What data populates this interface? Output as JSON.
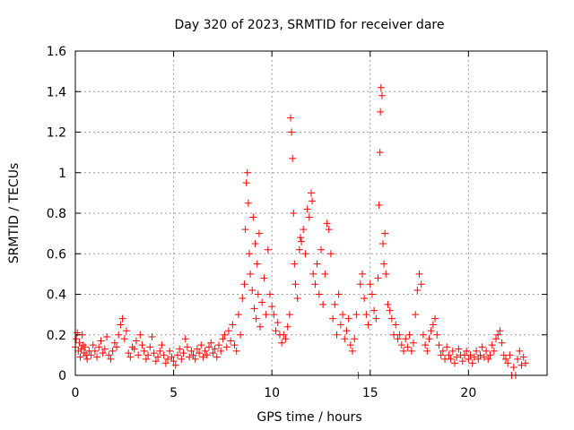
{
  "chart_data": {
    "type": "scatter",
    "title": "Day 320 of 2023, SRMTID for receiver dare",
    "xlabel": "GPS time / hours",
    "ylabel": "SRMTID / TECUs",
    "xlim": [
      0,
      24
    ],
    "ylim": [
      0,
      1.6
    ],
    "x_ticks": [
      0,
      5,
      10,
      15,
      20
    ],
    "x_tick_labels": [
      "0",
      "5",
      "10",
      "15",
      "20"
    ],
    "y_ticks": [
      0,
      0.2,
      0.4,
      0.6,
      0.8,
      1,
      1.2,
      1.4,
      1.6
    ],
    "y_tick_labels": [
      "0",
      "0.2",
      "0.4",
      "0.6",
      "0.8",
      "1",
      "1.2",
      "1.4",
      "1.6"
    ],
    "grid": true,
    "marker": "+",
    "color": "#ff0000",
    "series": [
      {
        "name": "SRMTID",
        "points": [
          [
            0.0,
            0.14
          ],
          [
            0.05,
            0.18
          ],
          [
            0.1,
            0.21
          ],
          [
            0.15,
            0.12
          ],
          [
            0.2,
            0.16
          ],
          [
            0.25,
            0.09
          ],
          [
            0.3,
            0.13
          ],
          [
            0.35,
            0.2
          ],
          [
            0.4,
            0.15
          ],
          [
            0.45,
            0.11
          ],
          [
            0.5,
            0.14
          ],
          [
            0.55,
            0.1
          ],
          [
            0.6,
            0.08
          ],
          [
            0.7,
            0.12
          ],
          [
            0.8,
            0.1
          ],
          [
            0.9,
            0.15
          ],
          [
            1.0,
            0.12
          ],
          [
            1.1,
            0.09
          ],
          [
            1.2,
            0.14
          ],
          [
            1.3,
            0.17
          ],
          [
            1.4,
            0.11
          ],
          [
            1.5,
            0.13
          ],
          [
            1.6,
            0.19
          ],
          [
            1.7,
            0.1
          ],
          [
            1.8,
            0.08
          ],
          [
            1.9,
            0.12
          ],
          [
            2.0,
            0.16
          ],
          [
            2.1,
            0.14
          ],
          [
            2.2,
            0.2
          ],
          [
            2.3,
            0.25
          ],
          [
            2.4,
            0.28
          ],
          [
            2.5,
            0.18
          ],
          [
            2.6,
            0.22
          ],
          [
            2.7,
            0.11
          ],
          [
            2.8,
            0.09
          ],
          [
            2.9,
            0.14
          ],
          [
            3.0,
            0.13
          ],
          [
            3.1,
            0.17
          ],
          [
            3.2,
            0.1
          ],
          [
            3.3,
            0.2
          ],
          [
            3.4,
            0.15
          ],
          [
            3.5,
            0.12
          ],
          [
            3.6,
            0.08
          ],
          [
            3.7,
            0.1
          ],
          [
            3.8,
            0.14
          ],
          [
            3.9,
            0.19
          ],
          [
            4.0,
            0.11
          ],
          [
            4.1,
            0.07
          ],
          [
            4.2,
            0.09
          ],
          [
            4.3,
            0.12
          ],
          [
            4.4,
            0.15
          ],
          [
            4.5,
            0.1
          ],
          [
            4.6,
            0.06
          ],
          [
            4.7,
            0.08
          ],
          [
            4.8,
            0.12
          ],
          [
            4.9,
            0.09
          ],
          [
            5.0,
            0.07
          ],
          [
            5.1,
            0.05
          ],
          [
            5.2,
            0.1
          ],
          [
            5.3,
            0.13
          ],
          [
            5.4,
            0.08
          ],
          [
            5.5,
            0.11
          ],
          [
            5.6,
            0.18
          ],
          [
            5.7,
            0.14
          ],
          [
            5.8,
            0.09
          ],
          [
            5.9,
            0.12
          ],
          [
            6.0,
            0.1
          ],
          [
            6.1,
            0.08
          ],
          [
            6.2,
            0.13
          ],
          [
            6.3,
            0.11
          ],
          [
            6.4,
            0.15
          ],
          [
            6.5,
            0.09
          ],
          [
            6.6,
            0.12
          ],
          [
            6.7,
            0.1
          ],
          [
            6.8,
            0.14
          ],
          [
            6.9,
            0.16
          ],
          [
            7.0,
            0.11
          ],
          [
            7.1,
            0.13
          ],
          [
            7.2,
            0.09
          ],
          [
            7.3,
            0.15
          ],
          [
            7.4,
            0.12
          ],
          [
            7.5,
            0.18
          ],
          [
            7.6,
            0.2
          ],
          [
            7.7,
            0.14
          ],
          [
            7.8,
            0.22
          ],
          [
            7.9,
            0.17
          ],
          [
            8.0,
            0.25
          ],
          [
            8.1,
            0.15
          ],
          [
            8.2,
            0.12
          ],
          [
            8.3,
            0.3
          ],
          [
            8.4,
            0.2
          ],
          [
            8.5,
            0.38
          ],
          [
            8.6,
            0.45
          ],
          [
            8.65,
            0.72
          ],
          [
            8.7,
            0.95
          ],
          [
            8.75,
            1.0
          ],
          [
            8.8,
            0.85
          ],
          [
            8.85,
            0.6
          ],
          [
            8.9,
            0.5
          ],
          [
            9.0,
            0.42
          ],
          [
            9.05,
            0.78
          ],
          [
            9.1,
            0.33
          ],
          [
            9.15,
            0.65
          ],
          [
            9.2,
            0.28
          ],
          [
            9.25,
            0.55
          ],
          [
            9.3,
            0.4
          ],
          [
            9.35,
            0.7
          ],
          [
            9.4,
            0.24
          ],
          [
            9.5,
            0.36
          ],
          [
            9.6,
            0.48
          ],
          [
            9.7,
            0.3
          ],
          [
            9.8,
            0.62
          ],
          [
            9.9,
            0.4
          ],
          [
            10.0,
            0.34
          ],
          [
            10.1,
            0.3
          ],
          [
            10.2,
            0.22
          ],
          [
            10.3,
            0.26
          ],
          [
            10.4,
            0.2
          ],
          [
            10.5,
            0.16
          ],
          [
            10.6,
            0.2
          ],
          [
            10.7,
            0.18
          ],
          [
            10.8,
            0.24
          ],
          [
            10.9,
            0.3
          ],
          [
            10.95,
            1.27
          ],
          [
            11.0,
            1.2
          ],
          [
            11.05,
            1.07
          ],
          [
            11.1,
            0.8
          ],
          [
            11.15,
            0.55
          ],
          [
            11.2,
            0.45
          ],
          [
            11.3,
            0.38
          ],
          [
            11.4,
            0.62
          ],
          [
            11.45,
            0.68
          ],
          [
            11.5,
            0.66
          ],
          [
            11.6,
            0.72
          ],
          [
            11.7,
            0.6
          ],
          [
            11.8,
            0.82
          ],
          [
            11.9,
            0.78
          ],
          [
            12.0,
            0.9
          ],
          [
            12.05,
            0.86
          ],
          [
            12.1,
            0.5
          ],
          [
            12.2,
            0.45
          ],
          [
            12.3,
            0.55
          ],
          [
            12.4,
            0.4
          ],
          [
            12.5,
            0.62
          ],
          [
            12.6,
            0.35
          ],
          [
            12.7,
            0.5
          ],
          [
            12.8,
            0.75
          ],
          [
            12.9,
            0.72
          ],
          [
            13.0,
            0.6
          ],
          [
            13.1,
            0.28
          ],
          [
            13.2,
            0.35
          ],
          [
            13.3,
            0.2
          ],
          [
            13.4,
            0.4
          ],
          [
            13.5,
            0.25
          ],
          [
            13.6,
            0.3
          ],
          [
            13.7,
            0.18
          ],
          [
            13.8,
            0.22
          ],
          [
            13.9,
            0.28
          ],
          [
            14.0,
            0.15
          ],
          [
            14.1,
            0.12
          ],
          [
            14.2,
            0.18
          ],
          [
            14.3,
            0.3
          ],
          [
            14.4,
            0.0
          ],
          [
            14.5,
            0.45
          ],
          [
            14.6,
            0.5
          ],
          [
            14.7,
            0.38
          ],
          [
            14.8,
            0.3
          ],
          [
            14.9,
            0.25
          ],
          [
            15.0,
            0.45
          ],
          [
            15.1,
            0.4
          ],
          [
            15.2,
            0.32
          ],
          [
            15.3,
            0.28
          ],
          [
            15.4,
            0.48
          ],
          [
            15.45,
            0.84
          ],
          [
            15.5,
            1.1
          ],
          [
            15.52,
            1.3
          ],
          [
            15.55,
            1.42
          ],
          [
            15.6,
            1.38
          ],
          [
            15.65,
            0.65
          ],
          [
            15.7,
            0.55
          ],
          [
            15.75,
            0.7
          ],
          [
            15.8,
            0.5
          ],
          [
            15.9,
            0.35
          ],
          [
            16.0,
            0.32
          ],
          [
            16.1,
            0.28
          ],
          [
            16.2,
            0.2
          ],
          [
            16.3,
            0.25
          ],
          [
            16.4,
            0.18
          ],
          [
            16.5,
            0.2
          ],
          [
            16.6,
            0.15
          ],
          [
            16.7,
            0.12
          ],
          [
            16.8,
            0.18
          ],
          [
            16.9,
            0.14
          ],
          [
            17.0,
            0.2
          ],
          [
            17.1,
            0.12
          ],
          [
            17.2,
            0.16
          ],
          [
            17.3,
            0.3
          ],
          [
            17.4,
            0.42
          ],
          [
            17.5,
            0.5
          ],
          [
            17.6,
            0.45
          ],
          [
            17.7,
            0.2
          ],
          [
            17.8,
            0.15
          ],
          [
            17.9,
            0.12
          ],
          [
            18.0,
            0.18
          ],
          [
            18.1,
            0.22
          ],
          [
            18.2,
            0.25
          ],
          [
            18.3,
            0.28
          ],
          [
            18.4,
            0.2
          ],
          [
            18.5,
            0.15
          ],
          [
            18.6,
            0.1
          ],
          [
            18.7,
            0.12
          ],
          [
            18.8,
            0.08
          ],
          [
            18.9,
            0.14
          ],
          [
            19.0,
            0.1
          ],
          [
            19.1,
            0.08
          ],
          [
            19.2,
            0.12
          ],
          [
            19.3,
            0.06
          ],
          [
            19.4,
            0.09
          ],
          [
            19.5,
            0.13
          ],
          [
            19.6,
            0.1
          ],
          [
            19.7,
            0.07
          ],
          [
            19.8,
            0.1
          ],
          [
            19.9,
            0.12
          ],
          [
            20.0,
            0.08
          ],
          [
            20.1,
            0.1
          ],
          [
            20.2,
            0.06
          ],
          [
            20.3,
            0.09
          ],
          [
            20.4,
            0.12
          ],
          [
            20.5,
            0.08
          ],
          [
            20.6,
            0.1
          ],
          [
            20.7,
            0.14
          ],
          [
            20.8,
            0.09
          ],
          [
            20.9,
            0.12
          ],
          [
            21.0,
            0.08
          ],
          [
            21.1,
            0.1
          ],
          [
            21.2,
            0.15
          ],
          [
            21.3,
            0.12
          ],
          [
            21.4,
            0.18
          ],
          [
            21.5,
            0.2
          ],
          [
            21.6,
            0.22
          ],
          [
            21.7,
            0.16
          ],
          [
            21.8,
            0.1
          ],
          [
            21.9,
            0.08
          ],
          [
            22.0,
            0.06
          ],
          [
            22.1,
            0.1
          ],
          [
            22.2,
            0.0
          ],
          [
            22.3,
            0.04
          ],
          [
            22.4,
            0.0
          ],
          [
            22.5,
            0.08
          ],
          [
            22.6,
            0.12
          ],
          [
            22.7,
            0.05
          ],
          [
            22.8,
            0.09
          ],
          [
            22.9,
            0.06
          ]
        ]
      }
    ]
  }
}
